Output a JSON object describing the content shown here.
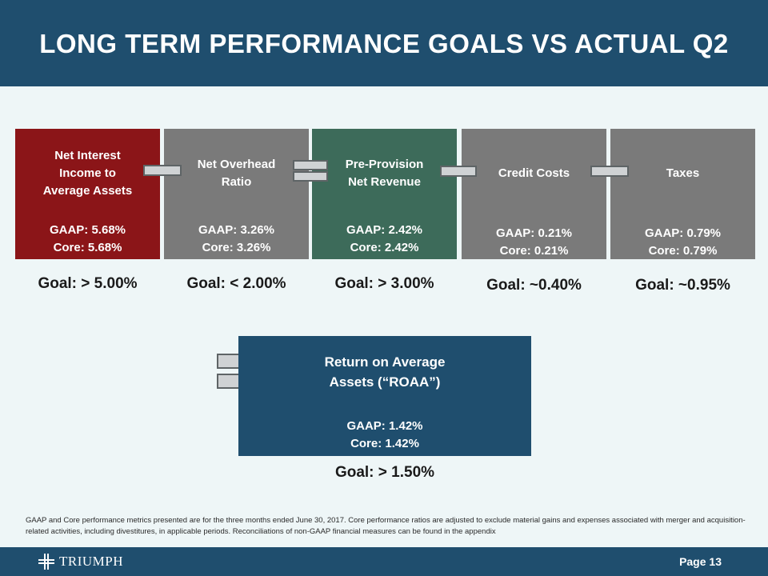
{
  "title": "LONG TERM PERFORMANCE GOALS VS ACTUAL Q2",
  "metrics": [
    {
      "label": "Net Interest\nIncome to\nAverage Assets",
      "gaap": "GAAP: 5.68%",
      "core": "Core: 5.68%",
      "goal": "Goal: > 5.00%",
      "color": "#8b1518"
    },
    {
      "label": "Net Overhead\nRatio",
      "gaap": "GAAP: 3.26%",
      "core": "Core: 3.26%",
      "goal": "Goal: < 2.00%",
      "color": "#7a7a7a"
    },
    {
      "label": "Pre-Provision\nNet Revenue",
      "gaap": "GAAP: 2.42%",
      "core": "Core: 2.42%",
      "goal": "Goal: > 3.00%",
      "color": "#3d6b5a"
    },
    {
      "label": "Credit Costs",
      "gaap": "GAAP: 0.21%",
      "core": "Core: 0.21%",
      "goal": "Goal: ~0.40%",
      "color": "#7a7a7a"
    },
    {
      "label": "Taxes",
      "gaap": "GAAP: 0.79%",
      "core": "Core: 0.79%",
      "goal": "Goal: ~0.95%",
      "color": "#7a7a7a"
    }
  ],
  "roaa": {
    "label": "Return on Average\nAssets (“ROAA”)",
    "gaap": "GAAP: 1.42%",
    "core": "Core: 1.42%",
    "goal": "Goal: > 1.50%",
    "color": "#1f4e6e"
  },
  "footnote": "GAAP and Core performance metrics presented are for the three months ended June 30, 2017. Core performance ratios are adjusted to exclude material gains and expenses associated with merger and acquisition-related activities, including divestitures, in applicable periods. Reconciliations of non-GAAP financial measures can be found in the appendix",
  "footer": {
    "logo_text": "TRIUMPH",
    "logo_icon": "cross-logo-icon",
    "page": "Page 13"
  },
  "operators": [
    "minus",
    "equals",
    "minus",
    "minus",
    "equals"
  ]
}
